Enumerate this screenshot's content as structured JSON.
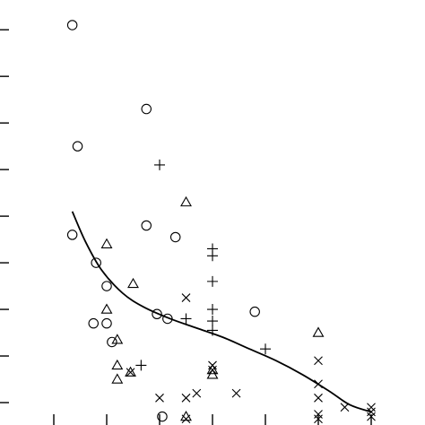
{
  "chart_data": {
    "type": "scatter",
    "title": "",
    "xlabel": "",
    "ylabel": "",
    "xlim": [
      0.5,
      8
    ],
    "ylim": [
      0,
      8.85
    ],
    "grid": false,
    "legend": "none",
    "x_ticks": [
      1,
      2,
      3,
      4,
      5,
      6,
      7
    ],
    "y_ticks": [
      0.5,
      1.5,
      2.5,
      3.5,
      4.5,
      5.5,
      6.5,
      7.5,
      8.5
    ],
    "series": [
      {
        "marker": "circle",
        "points": [
          [
            1.35,
            8.6
          ],
          [
            1.45,
            6.0
          ],
          [
            1.35,
            4.1
          ],
          [
            1.8,
            3.5
          ],
          [
            2.0,
            3.0
          ],
          [
            1.75,
            2.2
          ],
          [
            2.0,
            2.2
          ],
          [
            2.1,
            1.8
          ],
          [
            2.75,
            6.8
          ],
          [
            2.75,
            4.3
          ],
          [
            2.95,
            2.4
          ],
          [
            3.15,
            2.3
          ],
          [
            3.3,
            4.05
          ],
          [
            4.8,
            2.45
          ],
          [
            3.05,
            0.2
          ]
        ]
      },
      {
        "marker": "triangle",
        "points": [
          [
            2.0,
            3.9
          ],
          [
            2.0,
            2.5
          ],
          [
            2.2,
            1.85
          ],
          [
            2.2,
            1.3
          ],
          [
            2.2,
            1.0
          ],
          [
            2.5,
            3.05
          ],
          [
            2.45,
            1.15
          ],
          [
            3.5,
            4.8
          ],
          [
            3.5,
            0.2
          ],
          [
            4.0,
            1.2
          ],
          [
            4.0,
            1.1
          ],
          [
            6.0,
            2.0
          ]
        ]
      },
      {
        "marker": "plus",
        "points": [
          [
            3.0,
            5.6
          ],
          [
            2.65,
            1.3
          ],
          [
            3.5,
            2.3
          ],
          [
            4.0,
            3.8
          ],
          [
            4.0,
            3.65
          ],
          [
            4.0,
            3.1
          ],
          [
            4.0,
            2.5
          ],
          [
            4.0,
            2.25
          ],
          [
            4.0,
            2.05
          ],
          [
            5.0,
            1.65
          ]
        ]
      },
      {
        "marker": "x",
        "points": [
          [
            2.45,
            1.15
          ],
          [
            3.0,
            0.6
          ],
          [
            3.5,
            2.75
          ],
          [
            3.5,
            0.6
          ],
          [
            3.5,
            0.15
          ],
          [
            3.7,
            0.7
          ],
          [
            4.0,
            1.3
          ],
          [
            4.0,
            1.2
          ],
          [
            4.45,
            0.7
          ],
          [
            6.0,
            1.4
          ],
          [
            6.0,
            0.9
          ],
          [
            6.0,
            0.6
          ],
          [
            6.0,
            0.25
          ],
          [
            6.0,
            0.15
          ],
          [
            6.5,
            0.4
          ],
          [
            7.0,
            0.4
          ],
          [
            7.0,
            0.3
          ],
          [
            7.0,
            0.2
          ]
        ]
      }
    ],
    "fit_line": {
      "x": [
        1.35,
        1.6,
        1.9,
        2.3,
        2.7,
        3.2,
        3.7,
        4.2,
        4.7,
        5.2,
        5.7,
        6.2,
        6.6,
        7.0
      ],
      "y": [
        4.6,
        3.95,
        3.35,
        2.85,
        2.55,
        2.3,
        2.1,
        1.9,
        1.65,
        1.4,
        1.1,
        0.75,
        0.45,
        0.3
      ]
    }
  }
}
